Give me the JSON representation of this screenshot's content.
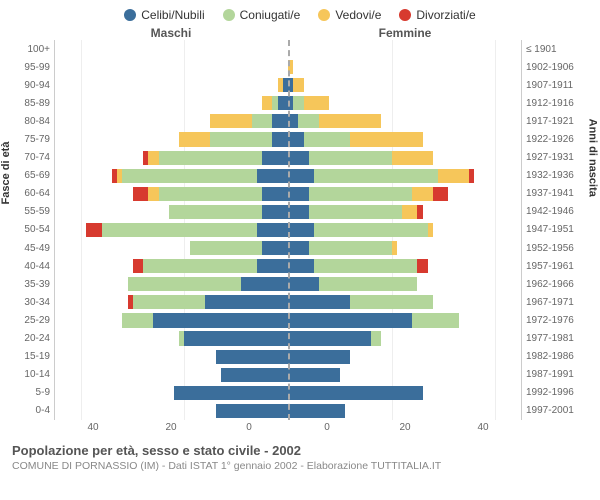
{
  "legend": [
    {
      "label": "Celibi/Nubili",
      "color": "#3b6e9b"
    },
    {
      "label": "Coniugati/e",
      "color": "#b3d69b"
    },
    {
      "label": "Vedovi/e",
      "color": "#f6c65a"
    },
    {
      "label": "Divorziati/e",
      "color": "#d73a2f"
    }
  ],
  "top_labels": {
    "male": "Maschi",
    "female": "Femmine"
  },
  "y_axis_label_left": "Fasce di età",
  "y_axis_label_right": "Anni di nascita",
  "x_max": 45,
  "x_ticks": [
    0,
    20,
    40
  ],
  "colors": {
    "celibi": "#3b6e9b",
    "coniugati": "#b3d69b",
    "vedovi": "#f6c65a",
    "divorziati": "#d73a2f",
    "grid": "#eeeeee",
    "centerline": "#aaaaaa"
  },
  "rows": [
    {
      "age": "100+",
      "birth": "≤ 1901",
      "m": {
        "c": 0,
        "k": 0,
        "v": 0,
        "d": 0
      },
      "f": {
        "c": 0,
        "k": 0,
        "v": 0,
        "d": 0
      }
    },
    {
      "age": "95-99",
      "birth": "1902-1906",
      "m": {
        "c": 0,
        "k": 0,
        "v": 0,
        "d": 0
      },
      "f": {
        "c": 0,
        "k": 0,
        "v": 1,
        "d": 0
      }
    },
    {
      "age": "90-94",
      "birth": "1907-1911",
      "m": {
        "c": 1,
        "k": 0,
        "v": 1,
        "d": 0
      },
      "f": {
        "c": 1,
        "k": 0,
        "v": 2,
        "d": 0
      }
    },
    {
      "age": "85-89",
      "birth": "1912-1916",
      "m": {
        "c": 2,
        "k": 1,
        "v": 2,
        "d": 0
      },
      "f": {
        "c": 1,
        "k": 2,
        "v": 5,
        "d": 0
      }
    },
    {
      "age": "80-84",
      "birth": "1917-1921",
      "m": {
        "c": 3,
        "k": 4,
        "v": 8,
        "d": 0
      },
      "f": {
        "c": 2,
        "k": 4,
        "v": 12,
        "d": 0
      }
    },
    {
      "age": "75-79",
      "birth": "1922-1926",
      "m": {
        "c": 3,
        "k": 12,
        "v": 6,
        "d": 0
      },
      "f": {
        "c": 3,
        "k": 9,
        "v": 14,
        "d": 0
      }
    },
    {
      "age": "70-74",
      "birth": "1927-1931",
      "m": {
        "c": 5,
        "k": 20,
        "v": 2,
        "d": 1
      },
      "f": {
        "c": 4,
        "k": 16,
        "v": 8,
        "d": 0
      }
    },
    {
      "age": "65-69",
      "birth": "1932-1936",
      "m": {
        "c": 6,
        "k": 26,
        "v": 1,
        "d": 1
      },
      "f": {
        "c": 5,
        "k": 24,
        "v": 6,
        "d": 1
      }
    },
    {
      "age": "60-64",
      "birth": "1937-1941",
      "m": {
        "c": 5,
        "k": 20,
        "v": 2,
        "d": 3
      },
      "f": {
        "c": 4,
        "k": 20,
        "v": 4,
        "d": 3
      }
    },
    {
      "age": "55-59",
      "birth": "1942-1946",
      "m": {
        "c": 5,
        "k": 18,
        "v": 0,
        "d": 0
      },
      "f": {
        "c": 4,
        "k": 18,
        "v": 3,
        "d": 1
      }
    },
    {
      "age": "50-54",
      "birth": "1947-1951",
      "m": {
        "c": 6,
        "k": 30,
        "v": 0,
        "d": 3
      },
      "f": {
        "c": 5,
        "k": 22,
        "v": 1,
        "d": 0
      }
    },
    {
      "age": "45-49",
      "birth": "1952-1956",
      "m": {
        "c": 5,
        "k": 14,
        "v": 0,
        "d": 0
      },
      "f": {
        "c": 4,
        "k": 16,
        "v": 1,
        "d": 0
      }
    },
    {
      "age": "40-44",
      "birth": "1957-1961",
      "m": {
        "c": 6,
        "k": 22,
        "v": 0,
        "d": 2
      },
      "f": {
        "c": 5,
        "k": 20,
        "v": 0,
        "d": 2
      }
    },
    {
      "age": "35-39",
      "birth": "1962-1966",
      "m": {
        "c": 9,
        "k": 22,
        "v": 0,
        "d": 0
      },
      "f": {
        "c": 6,
        "k": 19,
        "v": 0,
        "d": 0
      }
    },
    {
      "age": "30-34",
      "birth": "1967-1971",
      "m": {
        "c": 16,
        "k": 14,
        "v": 0,
        "d": 1
      },
      "f": {
        "c": 12,
        "k": 16,
        "v": 0,
        "d": 0
      }
    },
    {
      "age": "25-29",
      "birth": "1972-1976",
      "m": {
        "c": 26,
        "k": 6,
        "v": 0,
        "d": 0
      },
      "f": {
        "c": 24,
        "k": 9,
        "v": 0,
        "d": 0
      }
    },
    {
      "age": "20-24",
      "birth": "1977-1981",
      "m": {
        "c": 20,
        "k": 1,
        "v": 0,
        "d": 0
      },
      "f": {
        "c": 16,
        "k": 2,
        "v": 0,
        "d": 0
      }
    },
    {
      "age": "15-19",
      "birth": "1982-1986",
      "m": {
        "c": 14,
        "k": 0,
        "v": 0,
        "d": 0
      },
      "f": {
        "c": 12,
        "k": 0,
        "v": 0,
        "d": 0
      }
    },
    {
      "age": "10-14",
      "birth": "1987-1991",
      "m": {
        "c": 13,
        "k": 0,
        "v": 0,
        "d": 0
      },
      "f": {
        "c": 10,
        "k": 0,
        "v": 0,
        "d": 0
      }
    },
    {
      "age": "5-9",
      "birth": "1992-1996",
      "m": {
        "c": 22,
        "k": 0,
        "v": 0,
        "d": 0
      },
      "f": {
        "c": 26,
        "k": 0,
        "v": 0,
        "d": 0
      }
    },
    {
      "age": "0-4",
      "birth": "1997-2001",
      "m": {
        "c": 14,
        "k": 0,
        "v": 0,
        "d": 0
      },
      "f": {
        "c": 11,
        "k": 0,
        "v": 0,
        "d": 0
      }
    }
  ],
  "title": "Popolazione per età, sesso e stato civile - 2002",
  "subtitle": "COMUNE DI PORNASSIO (IM) - Dati ISTAT 1° gennaio 2002 - Elaborazione TUTTITALIA.IT"
}
